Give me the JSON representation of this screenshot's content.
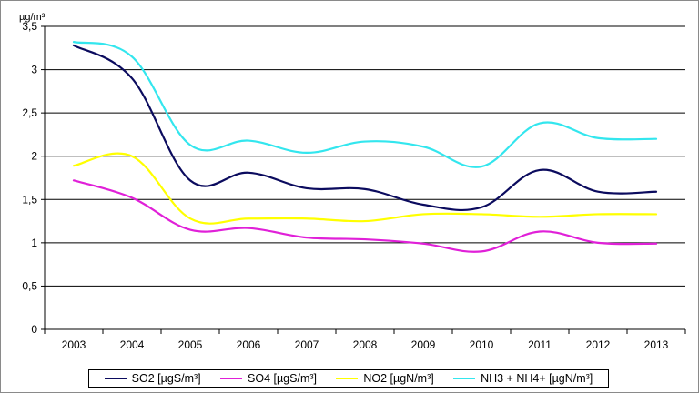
{
  "chart_data": {
    "type": "line",
    "title": "",
    "unit_label": "µg/m³",
    "xlabel": "",
    "ylabel": "",
    "categories": [
      "2003",
      "2004",
      "2005",
      "2006",
      "2007",
      "2008",
      "2009",
      "2010",
      "2011",
      "2012",
      "2013"
    ],
    "y_ticks": [
      "0",
      "0,5",
      "1",
      "1,5",
      "2",
      "2,5",
      "3",
      "3,5"
    ],
    "ylim": [
      0,
      3.5
    ],
    "grid": "horizontal",
    "legend_position": "bottom",
    "series": [
      {
        "name": "SO2 [µgS/m³]",
        "color": "#0b0b5e",
        "values": [
          3.28,
          2.9,
          1.72,
          1.81,
          1.63,
          1.62,
          1.44,
          1.41,
          1.84,
          1.59,
          1.59
        ]
      },
      {
        "name": "SO4 [µgS/m³]",
        "color": "#e020d8",
        "values": [
          1.72,
          1.52,
          1.15,
          1.17,
          1.06,
          1.04,
          0.99,
          0.9,
          1.13,
          1.0,
          0.99
        ]
      },
      {
        "name": "NO2 [µgN/m³]",
        "color": "#ffff00",
        "values": [
          1.89,
          2.0,
          1.28,
          1.28,
          1.28,
          1.25,
          1.33,
          1.33,
          1.3,
          1.33,
          1.33
        ]
      },
      {
        "name": "NH3 + NH4+ [µgN/m³]",
        "color": "#33e6ee",
        "values": [
          3.32,
          3.15,
          2.13,
          2.18,
          2.04,
          2.17,
          2.11,
          1.88,
          2.38,
          2.21,
          2.2
        ]
      }
    ]
  }
}
